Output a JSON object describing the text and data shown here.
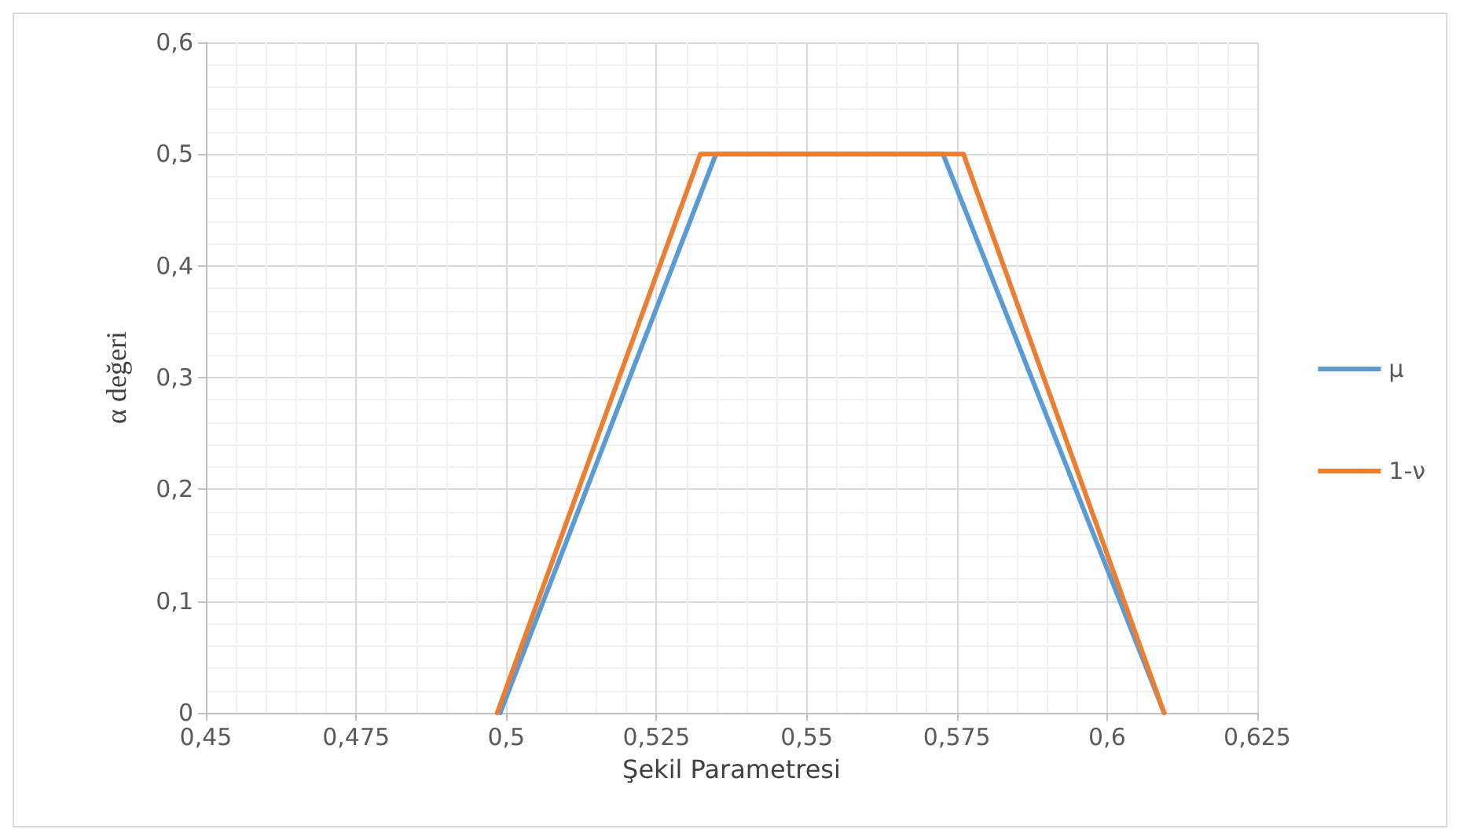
{
  "chart_data": {
    "type": "line",
    "xlabel": "Şekil Parametresi",
    "ylabel": "α değeri",
    "series": [
      {
        "name": "μ",
        "color": "#5b9bd5",
        "x": [
          0.499,
          0.5349,
          0.5727,
          0.6095
        ],
        "values": [
          0,
          0.5,
          0.5,
          0
        ]
      },
      {
        "name": "1-ν",
        "color": "#ed7d31",
        "x": [
          0.4985,
          0.5323,
          0.5761,
          0.6095
        ],
        "values": [
          0,
          0.5,
          0.5,
          0
        ]
      }
    ],
    "xlim": [
      0.45,
      0.625
    ],
    "ylim": [
      0,
      0.6
    ],
    "xticks": [
      {
        "value": 0.45,
        "label": "0,45"
      },
      {
        "value": 0.475,
        "label": "0,475"
      },
      {
        "value": 0.5,
        "label": "0,5"
      },
      {
        "value": 0.525,
        "label": "0,525"
      },
      {
        "value": 0.55,
        "label": "0,55"
      },
      {
        "value": 0.575,
        "label": "0,575"
      },
      {
        "value": 0.6,
        "label": "0,6"
      },
      {
        "value": 0.625,
        "label": "0,625"
      }
    ],
    "yticks": [
      0,
      {
        "value": 0.1,
        "label": "0,1"
      },
      {
        "value": 0.2,
        "label": "0,2"
      },
      {
        "value": 0.3,
        "label": "0,3"
      },
      {
        "value": 0.4,
        "label": "0,4"
      },
      {
        "value": 0.5,
        "label": "0,5"
      },
      {
        "value": 0.6,
        "label": "0,6"
      }
    ],
    "grid": true,
    "legend": "right",
    "marker": "none",
    "line_style": "solid"
  }
}
